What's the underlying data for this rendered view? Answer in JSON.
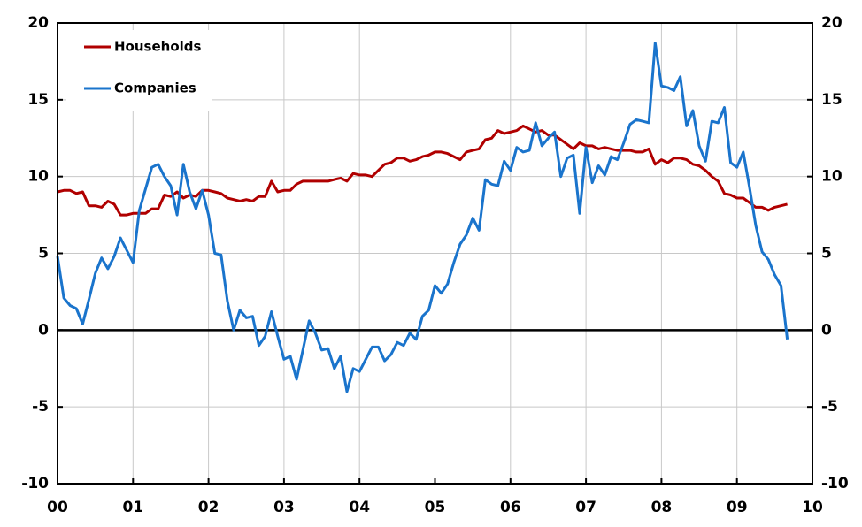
{
  "chart_data": {
    "type": "line",
    "x": [
      0,
      1,
      2,
      3,
      4,
      5,
      6,
      7,
      8,
      9,
      10,
      11,
      12,
      13,
      14,
      15,
      16,
      17,
      18,
      19,
      20,
      21,
      22,
      23,
      24,
      25,
      26,
      27,
      28,
      29,
      30,
      31,
      32,
      33,
      34,
      35,
      36,
      37,
      38,
      39,
      40,
      41,
      42,
      43,
      44,
      45,
      46,
      47,
      48,
      49,
      50,
      51,
      52,
      53,
      54,
      55,
      56,
      57,
      58,
      59,
      60,
      61,
      62,
      63,
      64,
      65,
      66,
      67,
      68,
      69,
      70,
      71,
      72,
      73,
      74,
      75,
      76,
      77,
      78,
      79,
      80,
      81,
      82,
      83,
      84,
      85,
      86,
      87,
      88,
      89,
      90,
      91,
      92,
      93,
      94,
      95,
      96,
      97,
      98,
      99,
      100,
      101,
      102,
      103,
      104,
      105,
      106,
      107,
      108,
      109,
      110,
      111,
      112,
      113,
      114,
      115,
      116
    ],
    "series": [
      {
        "name": "Households",
        "color": "#b00000",
        "values": [
          9.0,
          9.1,
          9.1,
          8.9,
          9.0,
          8.1,
          8.1,
          8.0,
          8.4,
          8.2,
          7.5,
          7.5,
          7.6,
          7.6,
          7.6,
          7.9,
          7.9,
          8.8,
          8.7,
          9.0,
          8.6,
          8.8,
          8.7,
          9.1,
          9.1,
          9.0,
          8.9,
          8.6,
          8.5,
          8.4,
          8.5,
          8.4,
          8.7,
          8.7,
          9.7,
          9.0,
          9.1,
          9.1,
          9.5,
          9.7,
          9.7,
          9.7,
          9.7,
          9.7,
          9.8,
          9.9,
          9.7,
          10.2,
          10.1,
          10.1,
          10.0,
          10.4,
          10.8,
          10.9,
          11.2,
          11.2,
          11.0,
          11.1,
          11.3,
          11.4,
          11.6,
          11.6,
          11.5,
          11.3,
          11.1,
          11.6,
          11.7,
          11.8,
          12.4,
          12.5,
          13.0,
          12.8,
          12.9,
          13.0,
          13.3,
          13.1,
          12.9,
          13.0,
          12.7,
          12.7,
          12.4,
          12.1,
          11.8,
          12.2,
          12.0,
          12.0,
          11.8,
          11.9,
          11.8,
          11.7,
          11.7,
          11.7,
          11.6,
          11.6,
          11.8,
          10.8,
          11.1,
          10.9,
          11.2,
          11.2,
          11.1,
          10.8,
          10.7,
          10.4,
          10.0,
          9.7,
          8.9,
          8.8,
          8.6,
          8.6,
          8.3,
          8.0,
          8.0,
          7.8,
          8.0,
          8.1,
          8.2
        ]
      },
      {
        "name": "Companies",
        "color": "#1a74cc",
        "values": [
          4.8,
          2.1,
          1.6,
          1.4,
          0.4,
          2.0,
          3.7,
          4.7,
          4.0,
          4.8,
          6.0,
          5.2,
          4.4,
          7.8,
          9.2,
          10.6,
          10.8,
          10.0,
          9.4,
          7.5,
          10.8,
          9.0,
          7.9,
          9.1,
          7.5,
          5.0,
          4.9,
          1.9,
          0.0,
          1.3,
          0.8,
          0.9,
          -1.0,
          -0.4,
          1.2,
          -0.4,
          -1.9,
          -1.7,
          -3.2,
          -1.3,
          0.6,
          -0.2,
          -1.3,
          -1.2,
          -2.5,
          -1.7,
          -4.0,
          -2.5,
          -2.7,
          -1.9,
          -1.1,
          -1.1,
          -2.0,
          -1.6,
          -0.8,
          -1.0,
          -0.2,
          -0.6,
          0.9,
          1.3,
          2.9,
          2.4,
          3.0,
          4.4,
          5.6,
          6.2,
          7.3,
          6.5,
          9.8,
          9.5,
          9.4,
          11.0,
          10.4,
          11.9,
          11.6,
          11.7,
          13.5,
          12.0,
          12.5,
          12.9,
          10.0,
          11.2,
          11.4,
          7.6,
          11.9,
          9.6,
          10.7,
          10.1,
          11.3,
          11.1,
          12.2,
          13.4,
          13.7,
          13.6,
          13.5,
          18.7,
          15.9,
          15.8,
          15.6,
          16.5,
          13.3,
          14.3,
          12.0,
          11.0,
          13.6,
          13.5,
          14.5,
          10.9,
          10.6,
          11.6,
          9.3,
          6.8,
          5.1,
          4.6,
          3.6,
          2.9,
          -0.6
        ]
      }
    ],
    "xlim": [
      0,
      120
    ],
    "xticks": [
      {
        "value": 0,
        "label": "00"
      },
      {
        "value": 12,
        "label": "01"
      },
      {
        "value": 24,
        "label": "02"
      },
      {
        "value": 36,
        "label": "03"
      },
      {
        "value": 48,
        "label": "04"
      },
      {
        "value": 60,
        "label": "05"
      },
      {
        "value": 72,
        "label": "06"
      },
      {
        "value": 84,
        "label": "07"
      },
      {
        "value": 96,
        "label": "08"
      },
      {
        "value": 108,
        "label": "09"
      },
      {
        "value": 120,
        "label": "10"
      }
    ],
    "ylim": [
      -10,
      20
    ],
    "yticks": [
      -10,
      -5,
      0,
      5,
      10,
      15,
      20
    ],
    "y2lim": [
      -10,
      20
    ],
    "y2ticks": [
      -10,
      -5,
      0,
      5,
      10,
      15,
      20
    ],
    "grid": true,
    "legend": "upper left"
  }
}
